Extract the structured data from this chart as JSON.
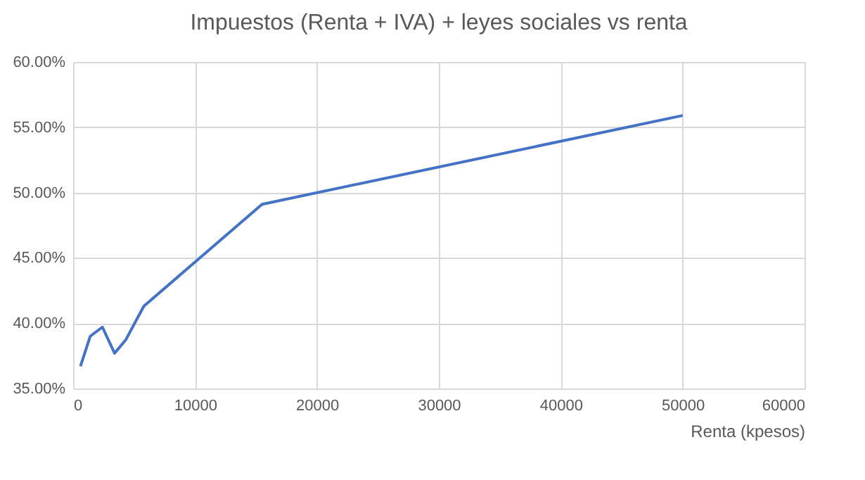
{
  "chart_data": {
    "type": "line",
    "title": "Impuestos (Renta + IVA) + leyes sociales vs renta",
    "xlabel": "Renta  (kpesos)",
    "x": [
      600,
      1400,
      2400,
      3400,
      4300,
      5800,
      15500,
      50000
    ],
    "series": [
      {
        "color": "#4472c4",
        "values": [
          36.7,
          39.0,
          39.7,
          37.7,
          38.7,
          41.3,
          49.1,
          55.9
        ]
      }
    ],
    "xlim": [
      0,
      60000
    ],
    "xticks": [
      0,
      10000,
      20000,
      30000,
      40000,
      50000,
      60000
    ],
    "ylim": [
      35,
      60
    ],
    "yticks": [
      {
        "value": 35,
        "label": "35.00%"
      },
      {
        "value": 40,
        "label": "40.00%"
      },
      {
        "value": 45,
        "label": "45.00%"
      },
      {
        "value": 50,
        "label": "50.00%"
      },
      {
        "value": 55,
        "label": "55.00%"
      },
      {
        "value": 60,
        "label": "60.00%"
      }
    ],
    "grid": true,
    "marker": "none",
    "line_style": "solid"
  }
}
